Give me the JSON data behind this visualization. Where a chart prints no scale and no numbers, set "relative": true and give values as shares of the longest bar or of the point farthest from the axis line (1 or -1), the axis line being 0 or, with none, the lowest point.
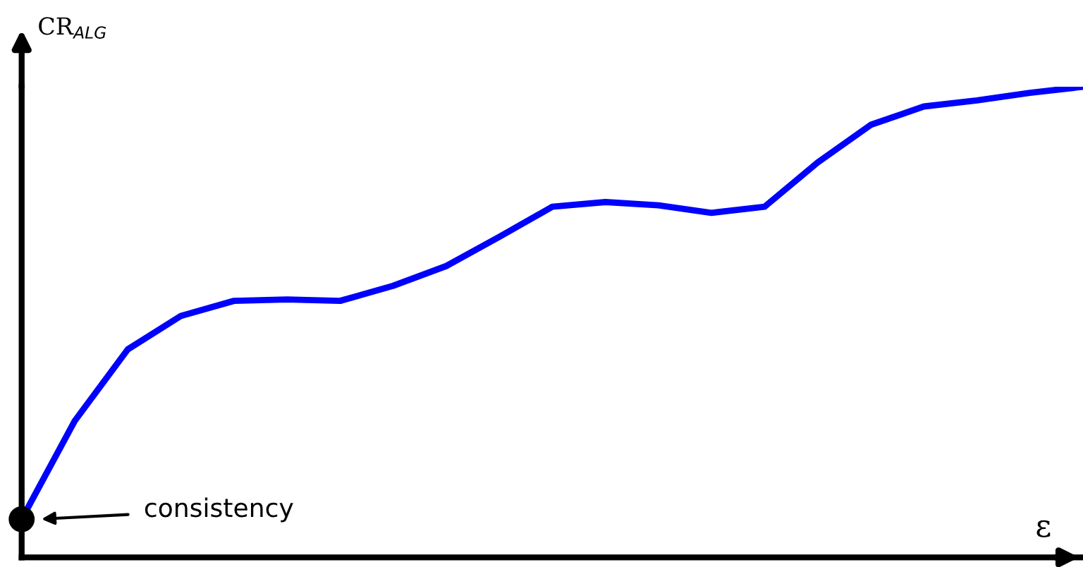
{
  "chart_data": {
    "type": "line",
    "relative": true,
    "ylabel": "CR$_{ALG}$",
    "xlabel": "ε",
    "categories": [
      null,
      null,
      null,
      null,
      null,
      null,
      null,
      null,
      null,
      null,
      null,
      null,
      null,
      null,
      null,
      null,
      null,
      null,
      null,
      null,
      null
    ],
    "series": [
      {
        "color": "#0000ff",
        "values": [
          0.081,
          0.29,
          0.442,
          0.513,
          0.545,
          0.548,
          0.545,
          0.577,
          0.619,
          0.681,
          0.745,
          0.755,
          0.748,
          0.732,
          0.745,
          0.839,
          0.919,
          0.958,
          0.971,
          0.987,
          1.0
        ]
      }
    ],
    "annotations": [
      "consistency"
    ],
    "grid": false,
    "legend": false,
    "marker": "none",
    "line_style": "solid"
  }
}
